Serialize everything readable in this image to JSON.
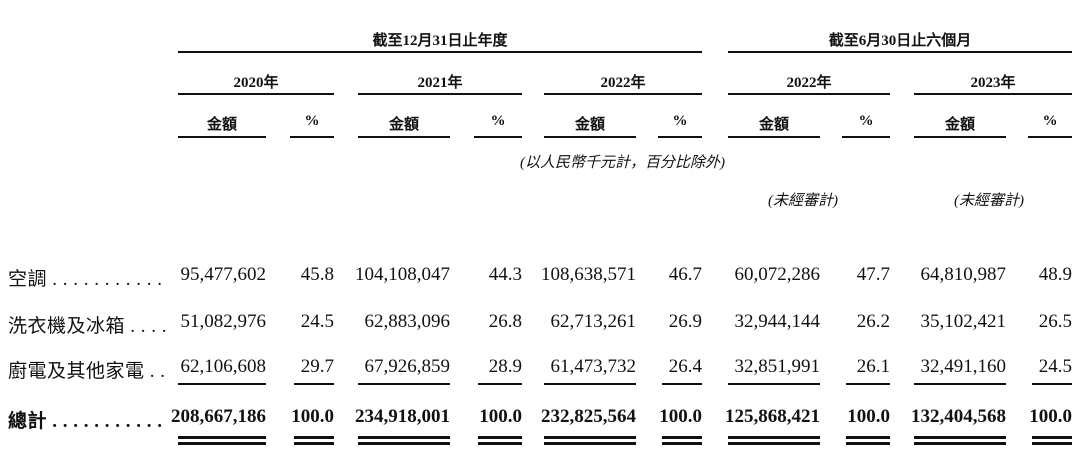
{
  "header": {
    "group1_title": "截至12月31日止年度",
    "group2_title": "截至6月30日止六個月",
    "years": [
      "2020年",
      "2021年",
      "2022年",
      "2022年",
      "2023年"
    ],
    "amount_label": "金額",
    "percent_label": "%",
    "unit_note": "(以人民幣千元計，百分比除外)",
    "unaudited_1": "(未經審計)",
    "unaudited_2": "(未經審計)"
  },
  "rows": [
    {
      "label": "空調 . . . . . . . . . . .",
      "values": [
        "95,477,602",
        "45.8",
        "104,108,047",
        "44.3",
        "108,638,571",
        "46.7",
        "60,072,286",
        "47.7",
        "64,810,987",
        "48.9"
      ]
    },
    {
      "label": "洗衣機及冰箱 . . . .",
      "values": [
        "51,082,976",
        "24.5",
        "62,883,096",
        "26.8",
        "62,713,261",
        "26.9",
        "32,944,144",
        "26.2",
        "35,102,421",
        "26.5"
      ]
    },
    {
      "label": "廚電及其他家電 . .",
      "values": [
        "62,106,608",
        "29.7",
        "67,926,859",
        "28.9",
        "61,473,732",
        "26.4",
        "32,851,991",
        "26.1",
        "32,491,160",
        "24.5"
      ]
    },
    {
      "label": "總計 . . . . . . . . . . .",
      "values": [
        "208,667,186",
        "100.0",
        "234,918,001",
        "100.0",
        "232,825,564",
        "100.0",
        "125,868,421",
        "100.0",
        "132,404,568",
        "100.0"
      ]
    }
  ]
}
